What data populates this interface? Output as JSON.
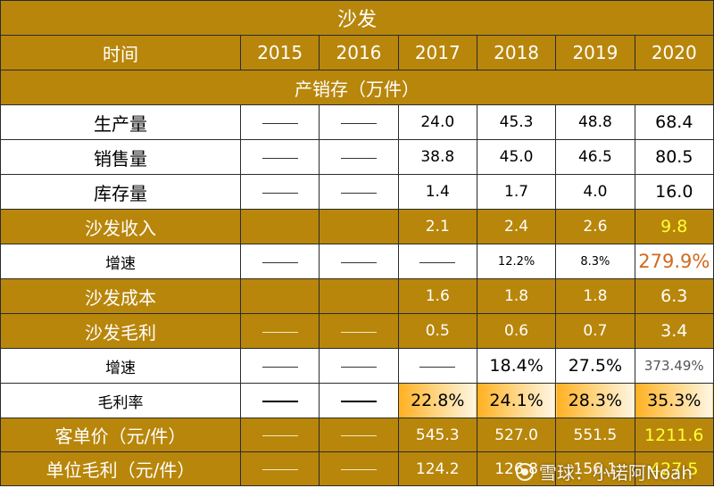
{
  "title": "沙发",
  "header": {
    "label": "时间",
    "years": [
      "2015",
      "2016",
      "2017",
      "2018",
      "2019",
      "2020"
    ]
  },
  "section": "产销存（万件）",
  "rows": {
    "production": {
      "label": "生产量",
      "values": [
        "——",
        "——",
        "24.0",
        "45.3",
        "48.8",
        "68.4"
      ]
    },
    "sales": {
      "label": "销售量",
      "values": [
        "——",
        "——",
        "38.8",
        "45.0",
        "46.5",
        "80.5"
      ]
    },
    "inventory": {
      "label": "库存量",
      "values": [
        "——",
        "——",
        "1.4",
        "1.7",
        "4.0",
        "16.0"
      ]
    },
    "revenue": {
      "label": "沙发收入",
      "values": [
        "",
        "",
        "2.1",
        "2.4",
        "2.6",
        "9.8"
      ]
    },
    "revenue_growth": {
      "label": "增速",
      "values": [
        "——",
        "——",
        "——",
        "12.2%",
        "8.3%",
        "279.9%"
      ]
    },
    "cost": {
      "label": "沙发成本",
      "values": [
        "",
        "",
        "1.6",
        "1.8",
        "1.8",
        "6.3"
      ]
    },
    "gross_profit": {
      "label": "沙发毛利",
      "values": [
        "——",
        "——",
        "0.5",
        "0.6",
        "0.7",
        "3.4"
      ]
    },
    "profit_growth": {
      "label": "增速",
      "values": [
        "——",
        "——",
        "——",
        "18.4%",
        "27.5%",
        "373.49%"
      ]
    },
    "margin": {
      "label": "毛利率",
      "values": [
        "——",
        "——",
        "22.8%",
        "24.1%",
        "28.3%",
        "35.3%"
      ]
    },
    "unit_price": {
      "label": "客单价（元/件）",
      "values": [
        "——",
        "——",
        "545.3",
        "527.0",
        "551.5",
        "1211.6"
      ]
    },
    "unit_profit": {
      "label": "单位毛利（元/件）",
      "values": [
        "——",
        "——",
        "124.2",
        "126.8",
        "156.1",
        "427.5"
      ]
    }
  },
  "watermark": "雪球：小诺阿Noah",
  "colors": {
    "header_bg": "#b8860b",
    "highlight_yellow": "#ffff33",
    "highlight_orange": "#d2691e",
    "margin_gradient": "#ffb020"
  }
}
